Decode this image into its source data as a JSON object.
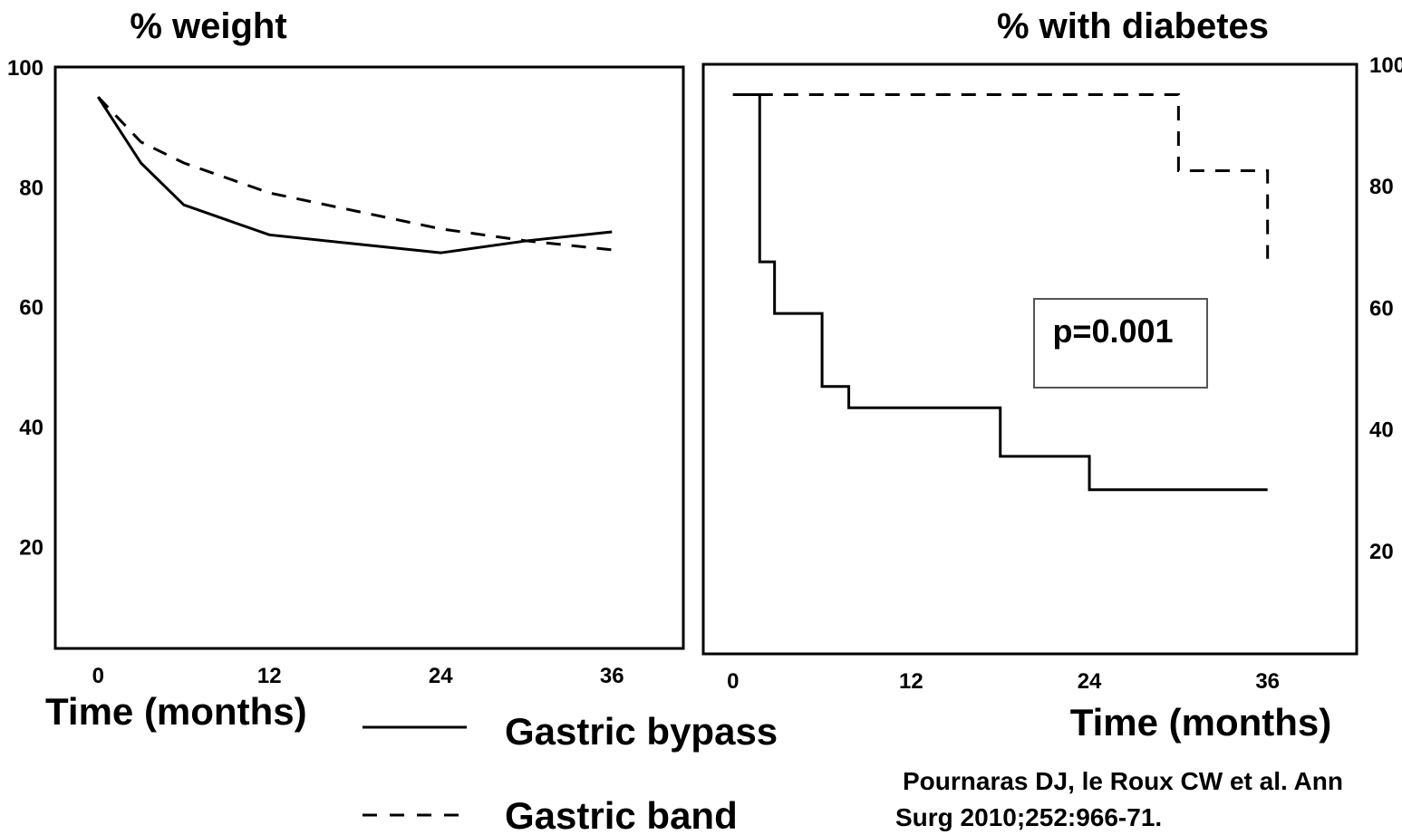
{
  "chart_data": [
    {
      "type": "line",
      "title": "% weight",
      "xlabel": "Time (months)",
      "xlim": [
        -3,
        41
      ],
      "ylim": [
        3,
        100
      ],
      "x_ticks": [
        0,
        12,
        24,
        36
      ],
      "y_ticks": [
        20,
        40,
        60,
        80,
        100
      ],
      "y_axis_side": "left",
      "series": [
        {
          "name": "Gastric bypass",
          "style": "solid",
          "x": [
            0,
            3,
            6,
            12,
            18,
            24,
            30,
            36
          ],
          "y": [
            95,
            84,
            77,
            72,
            70.5,
            69,
            71,
            72.5
          ]
        },
        {
          "name": "Gastric band",
          "style": "dashed",
          "x": [
            0,
            3,
            6,
            12,
            18,
            24,
            30,
            36
          ],
          "y": [
            95,
            87.5,
            84,
            79,
            76,
            73,
            71,
            69.5
          ]
        }
      ]
    },
    {
      "type": "line",
      "step": true,
      "title": "% with diabetes",
      "xlabel": "Time (months)",
      "xlim": [
        -2,
        42
      ],
      "ylim": [
        3,
        100
      ],
      "x_ticks": [
        0,
        12,
        24,
        36
      ],
      "y_ticks": [
        20,
        40,
        60,
        80,
        100
      ],
      "y_axis_side": "right",
      "annotation": "p=0.001",
      "series": [
        {
          "name": "Gastric bypass",
          "style": "solid",
          "x": [
            0,
            1.8,
            2.8,
            6,
            7.8,
            18,
            24,
            36
          ],
          "y": [
            95,
            67.5,
            59,
            47,
            43.5,
            35.5,
            30,
            30
          ]
        },
        {
          "name": "Gastric band",
          "style": "dashed",
          "x": [
            0,
            30,
            36,
            36
          ],
          "y": [
            95,
            82.5,
            82.5,
            68
          ]
        }
      ]
    }
  ],
  "legend": {
    "items": [
      {
        "label": "Gastric bypass",
        "style": "solid"
      },
      {
        "label": "Gastric band",
        "style": "dashed"
      }
    ]
  },
  "citation": {
    "line1": "Pournaras DJ, le Roux CW et al. Ann",
    "line2": "Surg 2010;252:966-71."
  }
}
